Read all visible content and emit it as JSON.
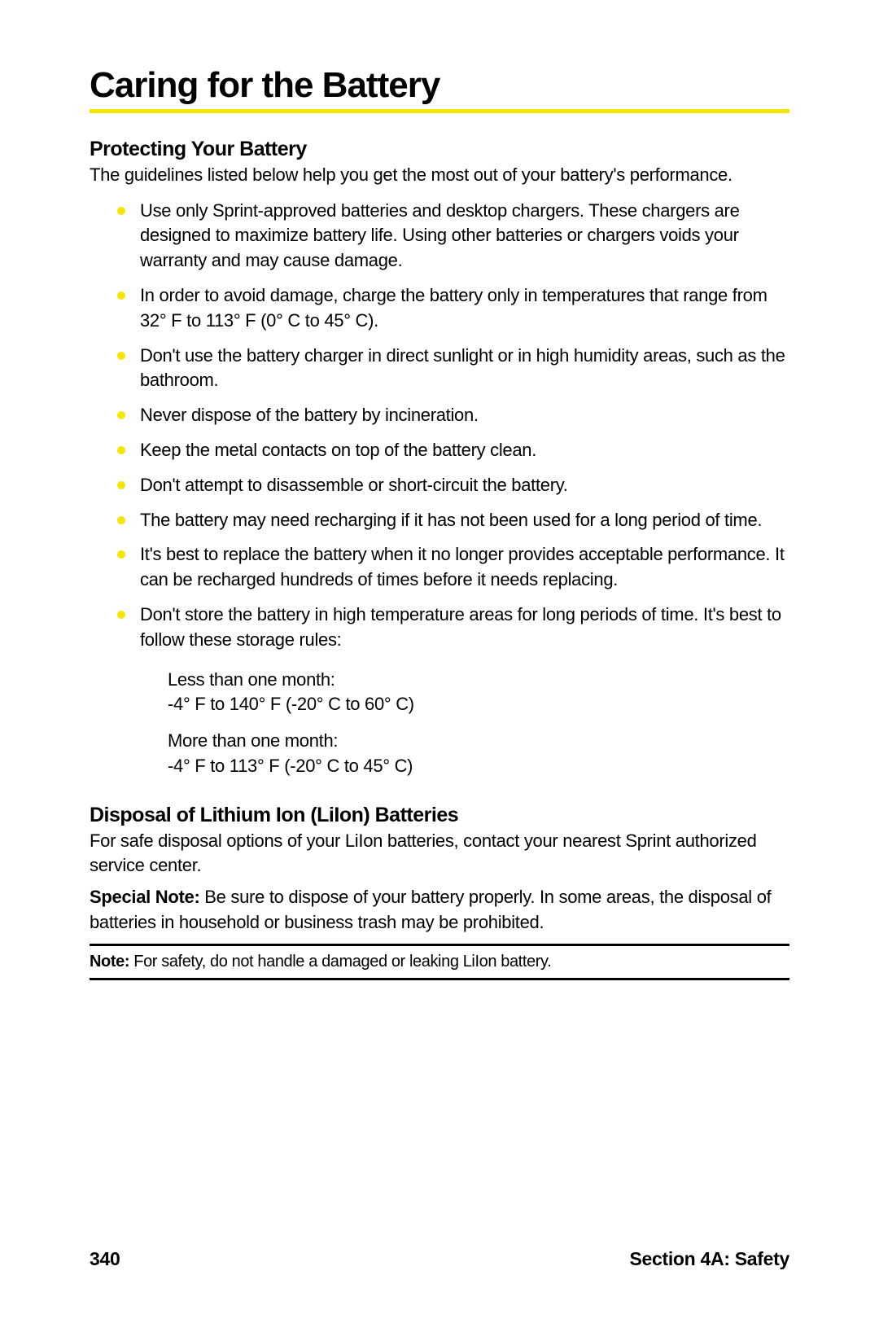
{
  "title": "Caring for the Battery",
  "section1": {
    "heading": "Protecting Your Battery",
    "intro": "The guidelines listed below help you get the most out of your battery's performance.",
    "bullets": [
      "Use only Sprint-approved batteries and desktop chargers. These chargers are designed to maximize battery life. Using other batteries or chargers voids your warranty and may cause damage.",
      "In order to avoid damage, charge the battery only in temperatures that range from 32° F to 113° F (0° C to 45° C).",
      "Don't use the battery charger in direct sunlight or in high humidity areas, such as the bathroom.",
      "Never dispose of the battery by incineration.",
      "Keep the metal contacts on top of the battery clean.",
      "Don't attempt to disassemble or short-circuit the battery.",
      "The battery may need recharging if it has not been used for a long period of time.",
      "It's best to replace the battery when it no longer provides acceptable performance. It can be recharged hundreds of times before it needs replacing.",
      "Don't store the battery in high temperature areas for long periods of time. It's best to follow these storage rules:"
    ],
    "storage": {
      "short_label": "Less than one month:",
      "short_range": "-4° F to 140° F (-20° C to 60° C)",
      "long_label": "More than one month:",
      "long_range": "-4° F to 113° F (-20° C to 45° C)"
    }
  },
  "section2": {
    "heading": "Disposal of Lithium Ion (LiIon) Batteries",
    "intro": "For safe disposal options of your LiIon batteries, contact your nearest Sprint authorized service center.",
    "special_label": "Special Note:",
    "special_text": " Be sure to dispose of your battery properly. In some areas, the disposal of batteries in household or business trash may be prohibited.",
    "note_label": "Note:",
    "note_text": " For safety, do not  handle a damaged or leaking LiIon battery."
  },
  "footer": {
    "page": "340",
    "section": "Section 4A: Safety"
  }
}
